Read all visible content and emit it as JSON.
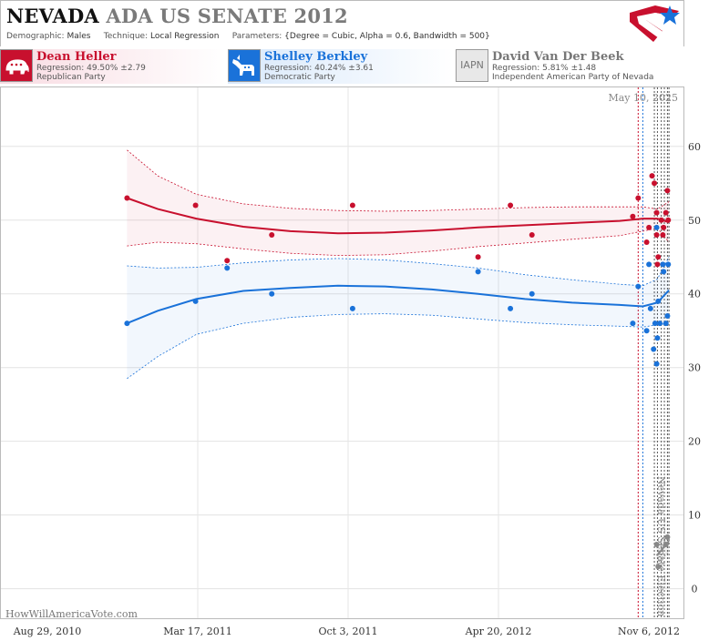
{
  "header": {
    "state": "NEVADA",
    "event": "ADA US SENATE 2012",
    "demographic_label": "Demographic:",
    "demographic": "Males",
    "technique_label": "Technique:",
    "technique": "Local Regression",
    "parameters_label": "Parameters:",
    "parameters": "{Degree = Cubic, Alpha = 0.6, Bandwidth = 500}"
  },
  "candidates": [
    {
      "name": "Dean Heller",
      "regression": "Regression: 49.50% ±2.79",
      "party": "Republican Party",
      "icon": "elephant-icon",
      "color": "#c8102e"
    },
    {
      "name": "Shelley Berkley",
      "regression": "Regression: 40.24% ±3.61",
      "party": "Democratic Party",
      "icon": "donkey-icon",
      "color": "#1a72d9"
    },
    {
      "name": "David Van Der Beek",
      "regression": "Regression: 5.81% ±1.48",
      "party": "Independent American Party  of Nevada",
      "icon_text": "IAPN",
      "color": "#888888"
    }
  ],
  "credit": "HowWillAmericaVote.com",
  "chart_data": {
    "type": "scatter",
    "date_label": "May 10, 2025",
    "event_label": "Nevada US Senate Election",
    "x_ticks": [
      "Aug 29, 2010",
      "Mar 17, 2011",
      "Oct 3, 2011",
      "Apr 20, 2012",
      "Nov 6, 2012"
    ],
    "y_ticks": [
      0,
      10,
      20,
      30,
      40,
      50,
      60
    ],
    "ylim": [
      -4,
      68
    ],
    "xlim": [
      "2010-08-29",
      "2012-11-24"
    ],
    "poll_dates": [
      "2012-09-25",
      "2012-10-01",
      "2012-10-16",
      "2012-10-20",
      "2012-10-25",
      "2012-10-29",
      "2012-11-02",
      "2012-11-04"
    ],
    "poll_date_colors": [
      "#c8102e",
      "#1a72d9",
      "#555555",
      "#555555",
      "#555555",
      "#555555",
      "#555555",
      "#555555"
    ],
    "series": [
      {
        "name": "Dean Heller",
        "color": "#c8102e",
        "points": [
          [
            "2010-12-01",
            53
          ],
          [
            "2011-02-28",
            52
          ],
          [
            "2011-04-10",
            44.5
          ],
          [
            "2011-06-07",
            48
          ],
          [
            "2011-09-20",
            52
          ],
          [
            "2012-03-01",
            45
          ],
          [
            "2012-04-12",
            52
          ],
          [
            "2012-05-10",
            48
          ],
          [
            "2012-09-18",
            50.5
          ],
          [
            "2012-09-25",
            53
          ],
          [
            "2012-10-06",
            47
          ],
          [
            "2012-10-09",
            49
          ],
          [
            "2012-10-13",
            56
          ],
          [
            "2012-10-16",
            55
          ],
          [
            "2012-10-19",
            51
          ],
          [
            "2012-10-19",
            48
          ],
          [
            "2012-10-20",
            44
          ],
          [
            "2012-10-21",
            45
          ],
          [
            "2012-10-25",
            50
          ],
          [
            "2012-10-27",
            48
          ],
          [
            "2012-10-28",
            49
          ],
          [
            "2012-10-31",
            51
          ],
          [
            "2012-11-02",
            54
          ],
          [
            "2012-11-03",
            50
          ]
        ],
        "trend": [
          [
            "2010-12-01",
            53
          ],
          [
            "2011-01-10",
            51.5
          ],
          [
            "2011-03-01",
            50.2
          ],
          [
            "2011-05-01",
            49.1
          ],
          [
            "2011-07-01",
            48.5
          ],
          [
            "2011-09-01",
            48.2
          ],
          [
            "2011-11-01",
            48.3
          ],
          [
            "2012-01-01",
            48.6
          ],
          [
            "2012-03-01",
            49
          ],
          [
            "2012-05-01",
            49.3
          ],
          [
            "2012-07-01",
            49.6
          ],
          [
            "2012-09-01",
            49.9
          ],
          [
            "2012-10-01",
            50.2
          ],
          [
            "2012-10-20",
            50.2
          ],
          [
            "2012-11-04",
            49.7
          ]
        ],
        "upper": [
          [
            "2010-12-01",
            59.5
          ],
          [
            "2011-01-10",
            56
          ],
          [
            "2011-03-01",
            53.5
          ],
          [
            "2011-05-01",
            52.2
          ],
          [
            "2011-07-01",
            51.6
          ],
          [
            "2011-09-01",
            51.3
          ],
          [
            "2011-11-01",
            51.2
          ],
          [
            "2012-01-01",
            51.3
          ],
          [
            "2012-03-01",
            51.5
          ],
          [
            "2012-05-01",
            51.7
          ],
          [
            "2012-07-01",
            51.8
          ],
          [
            "2012-09-01",
            51.8
          ],
          [
            "2012-10-01",
            51.8
          ],
          [
            "2012-10-20",
            51.5
          ],
          [
            "2012-11-04",
            52.5
          ]
        ],
        "lower": [
          [
            "2010-12-01",
            46.5
          ],
          [
            "2011-01-10",
            47
          ],
          [
            "2011-03-01",
            46.8
          ],
          [
            "2011-05-01",
            46.1
          ],
          [
            "2011-07-01",
            45.5
          ],
          [
            "2011-09-01",
            45.2
          ],
          [
            "2011-11-01",
            45.3
          ],
          [
            "2012-01-01",
            45.8
          ],
          [
            "2012-03-01",
            46.4
          ],
          [
            "2012-05-01",
            46.9
          ],
          [
            "2012-07-01",
            47.4
          ],
          [
            "2012-09-01",
            47.9
          ],
          [
            "2012-10-01",
            48.5
          ],
          [
            "2012-10-20",
            48.9
          ],
          [
            "2012-11-04",
            47
          ]
        ]
      },
      {
        "name": "Shelley Berkley",
        "color": "#1a72d9",
        "points": [
          [
            "2010-12-01",
            36
          ],
          [
            "2011-02-28",
            39
          ],
          [
            "2011-04-10",
            43.5
          ],
          [
            "2011-06-07",
            40
          ],
          [
            "2011-09-20",
            38
          ],
          [
            "2012-03-01",
            43
          ],
          [
            "2012-04-12",
            38
          ],
          [
            "2012-05-10",
            40
          ],
          [
            "2012-09-18",
            36
          ],
          [
            "2012-09-25",
            41
          ],
          [
            "2012-10-06",
            35
          ],
          [
            "2012-10-09",
            44
          ],
          [
            "2012-10-11",
            38
          ],
          [
            "2012-10-15",
            32.5
          ],
          [
            "2012-10-17",
            36
          ],
          [
            "2012-10-19",
            30.5
          ],
          [
            "2012-10-19",
            49
          ],
          [
            "2012-10-20",
            34
          ],
          [
            "2012-10-21",
            39
          ],
          [
            "2012-10-23",
            36
          ],
          [
            "2012-10-27",
            44
          ],
          [
            "2012-10-28",
            43
          ],
          [
            "2012-10-31",
            36
          ],
          [
            "2012-11-02",
            37
          ],
          [
            "2012-11-03",
            44
          ]
        ],
        "trend": [
          [
            "2010-12-01",
            36
          ],
          [
            "2011-01-10",
            37.7
          ],
          [
            "2011-03-01",
            39.3
          ],
          [
            "2011-05-01",
            40.4
          ],
          [
            "2011-07-01",
            40.8
          ],
          [
            "2011-09-01",
            41.1
          ],
          [
            "2011-11-01",
            41
          ],
          [
            "2012-01-01",
            40.6
          ],
          [
            "2012-03-01",
            40
          ],
          [
            "2012-05-01",
            39.3
          ],
          [
            "2012-07-01",
            38.8
          ],
          [
            "2012-09-01",
            38.5
          ],
          [
            "2012-10-01",
            38.3
          ],
          [
            "2012-10-20",
            38.8
          ],
          [
            "2012-11-04",
            40.5
          ]
        ],
        "upper": [
          [
            "2010-12-01",
            43.8
          ],
          [
            "2011-01-10",
            43.5
          ],
          [
            "2011-03-01",
            43.6
          ],
          [
            "2011-05-01",
            44.2
          ],
          [
            "2011-07-01",
            44.6
          ],
          [
            "2011-09-01",
            44.8
          ],
          [
            "2011-11-01",
            44.6
          ],
          [
            "2012-01-01",
            44.1
          ],
          [
            "2012-03-01",
            43.5
          ],
          [
            "2012-05-01",
            42.6
          ],
          [
            "2012-07-01",
            41.9
          ],
          [
            "2012-09-01",
            41.3
          ],
          [
            "2012-10-01",
            41.1
          ],
          [
            "2012-10-20",
            42
          ],
          [
            "2012-11-04",
            45
          ]
        ],
        "lower": [
          [
            "2010-12-01",
            28.5
          ],
          [
            "2011-01-10",
            31.5
          ],
          [
            "2011-03-01",
            34.5
          ],
          [
            "2011-05-01",
            36
          ],
          [
            "2011-07-01",
            36.8
          ],
          [
            "2011-09-01",
            37.2
          ],
          [
            "2011-11-01",
            37.3
          ],
          [
            "2012-01-01",
            37.1
          ],
          [
            "2012-03-01",
            36.6
          ],
          [
            "2012-05-01",
            36.1
          ],
          [
            "2012-07-01",
            35.8
          ],
          [
            "2012-09-01",
            35.6
          ],
          [
            "2012-10-01",
            35.5
          ],
          [
            "2012-10-20",
            35.8
          ],
          [
            "2012-11-04",
            36
          ]
        ]
      },
      {
        "name": "David Van Der Beek",
        "color": "#888888",
        "points": [
          [
            "2012-10-19",
            6
          ],
          [
            "2012-10-21",
            3
          ],
          [
            "2012-10-31",
            6
          ],
          [
            "2012-11-02",
            7
          ]
        ],
        "trend": [
          [
            "2012-10-19",
            4.5
          ],
          [
            "2012-10-25",
            5.2
          ],
          [
            "2012-10-31",
            6
          ],
          [
            "2012-11-04",
            6.5
          ]
        ],
        "upper": [
          [
            "2012-10-19",
            5.5
          ],
          [
            "2012-10-25",
            6.6
          ],
          [
            "2012-10-31",
            7.2
          ],
          [
            "2012-11-04",
            7.8
          ]
        ],
        "lower": [
          [
            "2012-10-19",
            3.3
          ],
          [
            "2012-10-25",
            4
          ],
          [
            "2012-10-31",
            4.6
          ],
          [
            "2012-11-04",
            5
          ]
        ]
      }
    ]
  }
}
